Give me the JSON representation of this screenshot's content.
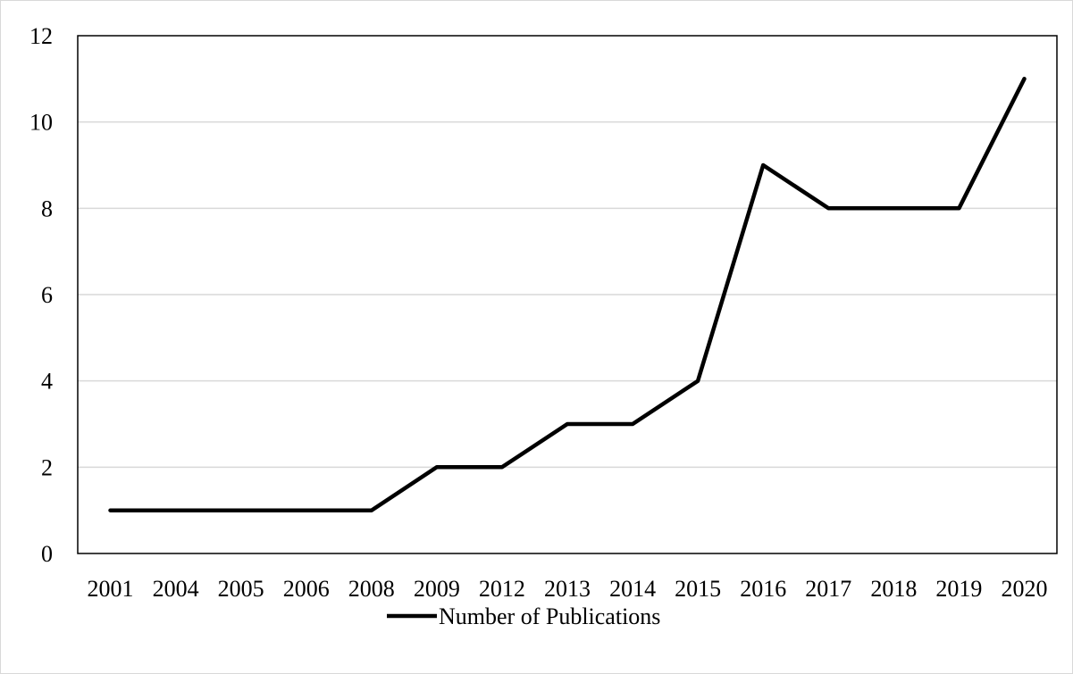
{
  "chart_data": {
    "type": "line",
    "title": "",
    "xlabel": "",
    "ylabel": "",
    "categories": [
      "2001",
      "2004",
      "2005",
      "2006",
      "2008",
      "2009",
      "2012",
      "2013",
      "2014",
      "2015",
      "2016",
      "2017",
      "2018",
      "2019",
      "2020"
    ],
    "series": [
      {
        "name": "Number of Publications",
        "values": [
          1,
          1,
          1,
          1,
          1,
          2,
          2,
          3,
          3,
          4,
          9,
          8,
          8,
          8,
          11
        ],
        "color": "#000000"
      }
    ],
    "ylim": [
      0,
      12
    ],
    "yticks": [
      0,
      2,
      4,
      6,
      8,
      10,
      12
    ],
    "grid": true,
    "gridColor": "#d9d9d9",
    "legend_position": "bottom"
  }
}
